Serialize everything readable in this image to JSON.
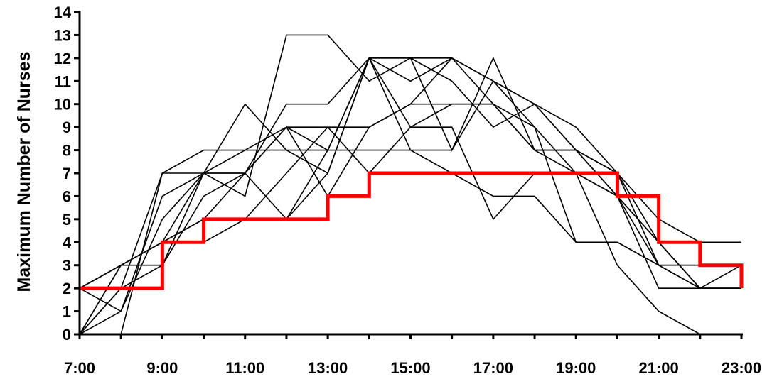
{
  "chart_data": {
    "type": "line",
    "xlabel": "",
    "ylabel": "Maximum Number of Nurses",
    "x": [
      7,
      8,
      9,
      10,
      11,
      12,
      13,
      14,
      15,
      16,
      17,
      18,
      19,
      20,
      21,
      22,
      23
    ],
    "x_tick_values": [
      7,
      9,
      11,
      13,
      15,
      17,
      19,
      21,
      23
    ],
    "x_tick_labels": [
      "7:00",
      "9:00",
      "11:00",
      "13:00",
      "15:00",
      "17:00",
      "19:00",
      "21:00",
      "23:00"
    ],
    "xlim": [
      7,
      23
    ],
    "y_tick_values": [
      0,
      1,
      2,
      3,
      4,
      5,
      6,
      7,
      8,
      9,
      10,
      11,
      12,
      13,
      14
    ],
    "ylim": [
      0,
      14
    ],
    "grid": false,
    "legend": "none",
    "line_color": "#000000",
    "step_color": "#ff0000",
    "series": [
      {
        "values": [
          0,
          2,
          7,
          7,
          7,
          9,
          8,
          12,
          11,
          12,
          10,
          8,
          8,
          7,
          4,
          2,
          2
        ]
      },
      {
        "values": [
          2,
          1,
          6,
          7,
          10,
          8,
          7,
          12,
          12,
          12,
          11,
          10,
          8,
          6,
          3,
          2,
          3
        ]
      },
      {
        "values": [
          0,
          0,
          7,
          8,
          8,
          8,
          8,
          8,
          8,
          8,
          11,
          9,
          4,
          4,
          3,
          3,
          3
        ]
      },
      {
        "values": [
          0,
          3,
          3,
          6,
          7,
          10,
          10,
          12,
          12,
          11,
          9,
          10,
          8,
          6,
          4,
          2,
          2
        ]
      },
      {
        "values": [
          0,
          3,
          4,
          7,
          6,
          13,
          13,
          11,
          12,
          8,
          12,
          8,
          8,
          7,
          5,
          4,
          4
        ]
      },
      {
        "values": [
          0,
          1,
          5,
          7,
          8,
          9,
          9,
          9,
          10,
          12,
          11,
          10,
          9,
          7,
          3,
          3,
          3
        ]
      },
      {
        "values": [
          2,
          3,
          4,
          5,
          5,
          7,
          9,
          7,
          9,
          9,
          5,
          7,
          7,
          6,
          2,
          2,
          2
        ]
      },
      {
        "values": [
          0,
          2,
          3,
          7,
          7,
          9,
          6,
          9,
          10,
          10,
          10,
          8,
          7,
          6,
          4,
          2,
          2
        ]
      },
      {
        "values": [
          2,
          3,
          4,
          4,
          5,
          5,
          8,
          12,
          8,
          7,
          6,
          6,
          4,
          4,
          3,
          2,
          2
        ]
      },
      {
        "values": [
          2,
          3,
          4,
          5,
          7,
          5,
          7,
          12,
          9,
          10,
          10,
          9,
          7,
          3,
          1,
          0,
          0
        ]
      }
    ],
    "step_series": {
      "x": [
        7,
        9,
        10,
        12,
        13,
        14,
        19,
        20,
        21,
        22,
        23
      ],
      "values": [
        2,
        4,
        5,
        5,
        6,
        7,
        7,
        6,
        4,
        3,
        2
      ]
    }
  }
}
